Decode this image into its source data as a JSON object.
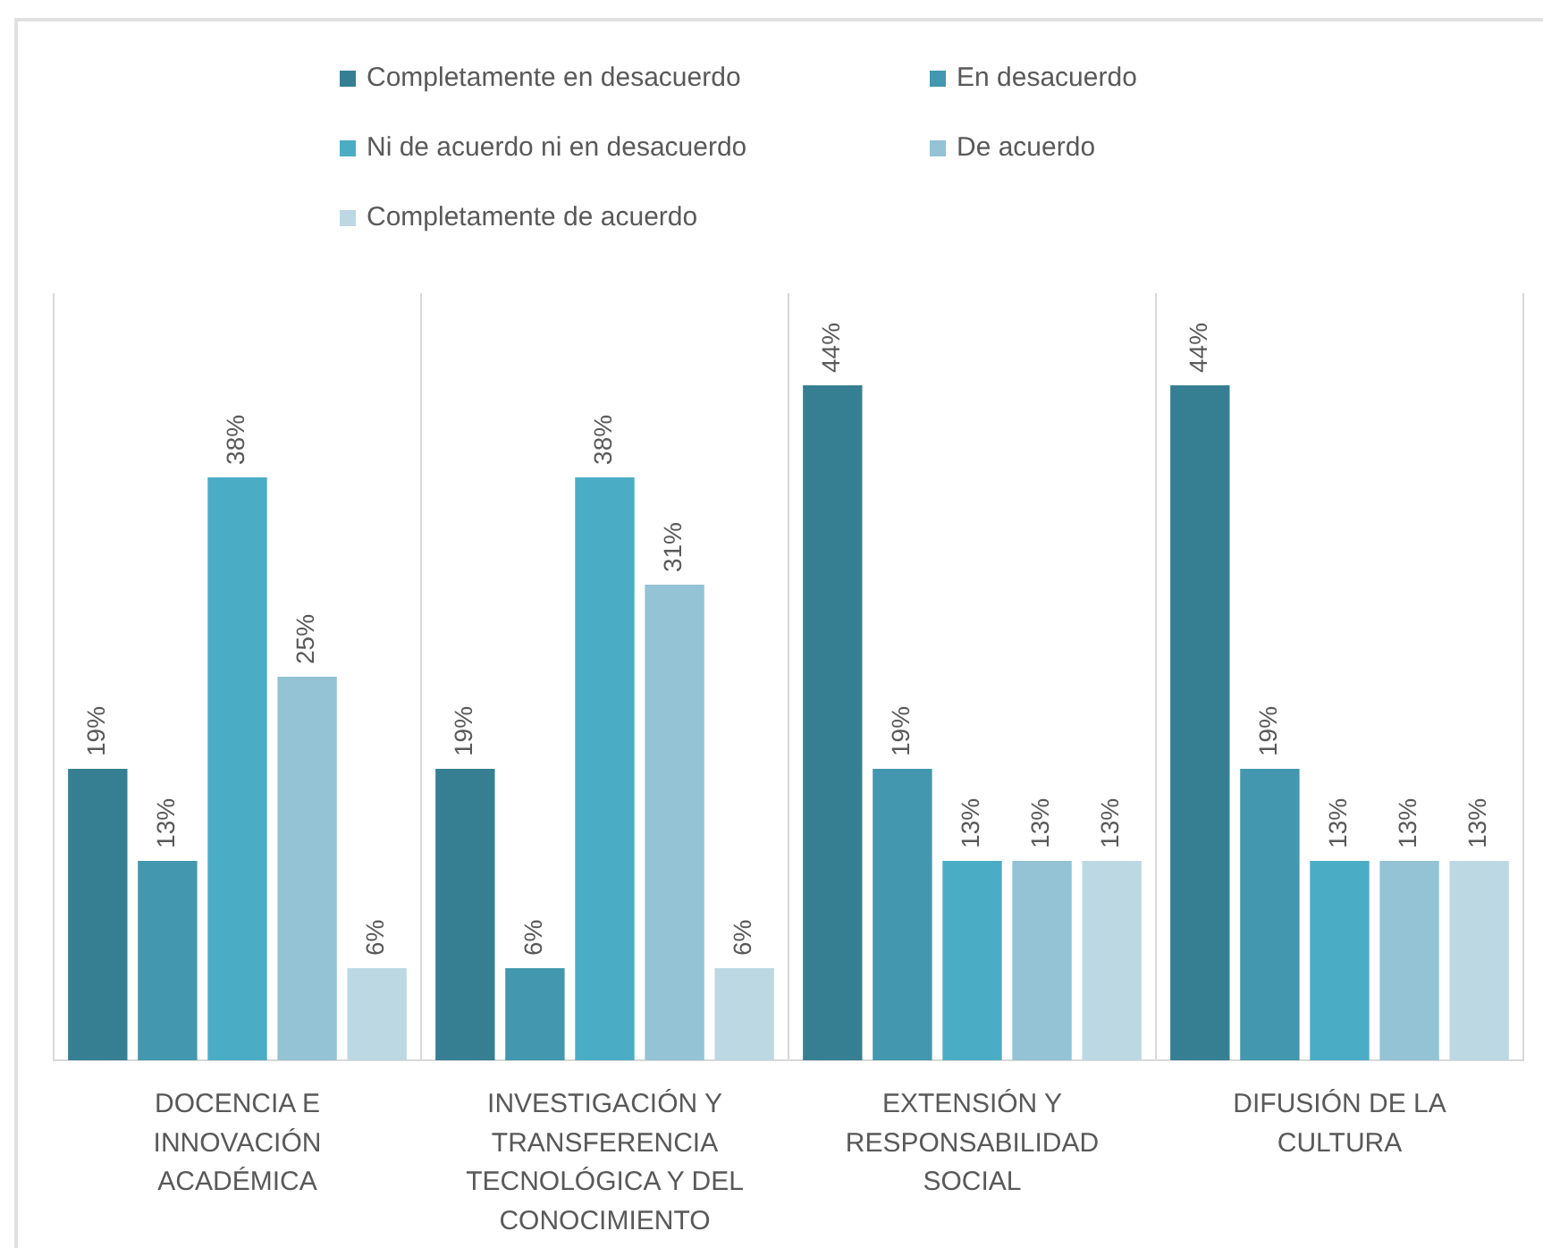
{
  "chart_data": {
    "type": "bar",
    "categories": [
      "DOCENCIA E INNOVACIÓN ACADÉMICA",
      "INVESTIGACIÓN Y TRANSFERENCIA TECNOLÓGICA Y DEL CONOCIMIENTO",
      "EXTENSIÓN Y RESPONSABILIDAD SOCIAL",
      "DIFUSIÓN DE LA CULTURA"
    ],
    "series": [
      {
        "name": "Completamente en desacuerdo",
        "color": "#367f93",
        "values": [
          19,
          19,
          44,
          44
        ],
        "value_labels": [
          "19%",
          "19%",
          "44%",
          "44%"
        ]
      },
      {
        "name": "En desacuerdo",
        "color": "#4397ae",
        "values": [
          13,
          6,
          19,
          19
        ],
        "value_labels": [
          "13%",
          "6%",
          "19%",
          "19%"
        ]
      },
      {
        "name": "Ni de acuerdo ni en desacuerdo",
        "color": "#4bacc6",
        "values": [
          38,
          38,
          13,
          13
        ],
        "value_labels": [
          "38%",
          "38%",
          "13%",
          "13%"
        ]
      },
      {
        "name": "De acuerdo",
        "color": "#93c3d4",
        "values": [
          25,
          31,
          13,
          13
        ],
        "value_labels": [
          "25%",
          "31%",
          "13%",
          "13%"
        ]
      },
      {
        "name": "Completamente de acuerdo",
        "color": "#bcd8e3",
        "values": [
          6,
          6,
          13,
          13
        ],
        "value_labels": [
          "6%",
          "6%",
          "13%",
          "13%"
        ]
      }
    ],
    "legend": "top",
    "grid": "x"
  }
}
